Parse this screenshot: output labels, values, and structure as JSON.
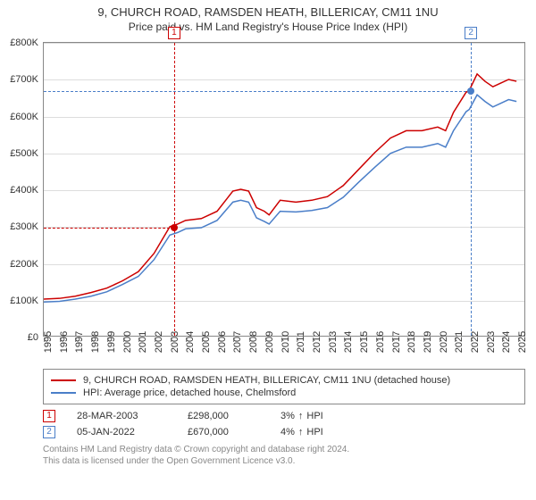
{
  "chart": {
    "title1": "9, CHURCH ROAD, RAMSDEN HEATH, BILLERICAY, CM11 1NU",
    "title2": "Price paid vs. HM Land Registry's House Price Index (HPI)",
    "background_color": "#ffffff",
    "grid_color": "#dddddd",
    "axis_color": "#888888",
    "y": {
      "min": 0,
      "max": 800000,
      "step": 100000,
      "ticks": [
        "£0",
        "£100K",
        "£200K",
        "£300K",
        "£400K",
        "£500K",
        "£600K",
        "£700K",
        "£800K"
      ]
    },
    "x": {
      "min": 1995,
      "max": 2025.5,
      "label_rotation": -90,
      "labels": [
        "1995",
        "1996",
        "1997",
        "1998",
        "1999",
        "2000",
        "2001",
        "2002",
        "2003",
        "2004",
        "2005",
        "2006",
        "2007",
        "2008",
        "2009",
        "2010",
        "2011",
        "2012",
        "2013",
        "2014",
        "2015",
        "2016",
        "2017",
        "2018",
        "2019",
        "2020",
        "2021",
        "2022",
        "2023",
        "2024",
        "2025"
      ]
    },
    "series": [
      {
        "id": "property",
        "label": "9, CHURCH ROAD, RAMSDEN HEATH, BILLERICAY, CM11 1NU (detached house)",
        "color": "#cc0000",
        "line_width": 1.5,
        "points": [
          [
            1995,
            100000
          ],
          [
            1996,
            102000
          ],
          [
            1997,
            108000
          ],
          [
            1998,
            118000
          ],
          [
            1999,
            130000
          ],
          [
            2000,
            150000
          ],
          [
            2001,
            175000
          ],
          [
            2002,
            225000
          ],
          [
            2003,
            298000
          ],
          [
            2003.5,
            305000
          ],
          [
            2004,
            315000
          ],
          [
            2005,
            320000
          ],
          [
            2006,
            340000
          ],
          [
            2007,
            395000
          ],
          [
            2007.5,
            400000
          ],
          [
            2008,
            395000
          ],
          [
            2008.5,
            350000
          ],
          [
            2009,
            340000
          ],
          [
            2009.3,
            330000
          ],
          [
            2010,
            370000
          ],
          [
            2011,
            365000
          ],
          [
            2012,
            370000
          ],
          [
            2013,
            380000
          ],
          [
            2014,
            410000
          ],
          [
            2015,
            455000
          ],
          [
            2016,
            500000
          ],
          [
            2017,
            540000
          ],
          [
            2018,
            560000
          ],
          [
            2019,
            560000
          ],
          [
            2020,
            570000
          ],
          [
            2020.5,
            560000
          ],
          [
            2021,
            610000
          ],
          [
            2021.8,
            665000
          ],
          [
            2022,
            670000
          ],
          [
            2022.5,
            715000
          ],
          [
            2023,
            695000
          ],
          [
            2023.5,
            680000
          ],
          [
            2024,
            690000
          ],
          [
            2024.5,
            700000
          ],
          [
            2025,
            695000
          ]
        ]
      },
      {
        "id": "hpi",
        "label": "HPI: Average price, detached house, Chelmsford",
        "color": "#4a7ec8",
        "line_width": 1.5,
        "points": [
          [
            1995,
            92000
          ],
          [
            1996,
            94000
          ],
          [
            1997,
            100000
          ],
          [
            1998,
            108000
          ],
          [
            1999,
            120000
          ],
          [
            2000,
            140000
          ],
          [
            2001,
            162000
          ],
          [
            2002,
            208000
          ],
          [
            2003,
            275000
          ],
          [
            2003.5,
            282000
          ],
          [
            2004,
            292000
          ],
          [
            2005,
            295000
          ],
          [
            2006,
            315000
          ],
          [
            2007,
            365000
          ],
          [
            2007.5,
            370000
          ],
          [
            2008,
            365000
          ],
          [
            2008.5,
            322000
          ],
          [
            2009,
            312000
          ],
          [
            2009.3,
            305000
          ],
          [
            2010,
            340000
          ],
          [
            2011,
            338000
          ],
          [
            2012,
            342000
          ],
          [
            2013,
            350000
          ],
          [
            2014,
            378000
          ],
          [
            2015,
            420000
          ],
          [
            2016,
            460000
          ],
          [
            2017,
            498000
          ],
          [
            2018,
            515000
          ],
          [
            2019,
            515000
          ],
          [
            2020,
            525000
          ],
          [
            2020.5,
            515000
          ],
          [
            2021,
            560000
          ],
          [
            2021.8,
            612000
          ],
          [
            2022,
            618000
          ],
          [
            2022.5,
            658000
          ],
          [
            2023,
            640000
          ],
          [
            2023.5,
            625000
          ],
          [
            2024,
            635000
          ],
          [
            2024.5,
            645000
          ],
          [
            2025,
            640000
          ]
        ]
      }
    ],
    "markers": [
      {
        "n": "1",
        "color": "#cc0000",
        "x": 2003.24,
        "y": 298000,
        "top_box": true
      },
      {
        "n": "2",
        "color": "#4a7ec8",
        "x": 2022.01,
        "y": 670000,
        "top_box": true
      }
    ]
  },
  "legend": {
    "items": [
      {
        "color": "#cc0000",
        "text": "9, CHURCH ROAD, RAMSDEN HEATH, BILLERICAY, CM11 1NU (detached house)"
      },
      {
        "color": "#4a7ec8",
        "text": "HPI: Average price, detached house, Chelmsford"
      }
    ]
  },
  "events": [
    {
      "n": "1",
      "color": "#cc0000",
      "date": "28-MAR-2003",
      "price": "£298,000",
      "pct": "3%",
      "arrow": "↑",
      "suffix": "HPI"
    },
    {
      "n": "2",
      "color": "#4a7ec8",
      "date": "05-JAN-2022",
      "price": "£670,000",
      "pct": "4%",
      "arrow": "↑",
      "suffix": "HPI"
    }
  ],
  "footer": {
    "line1": "Contains HM Land Registry data © Crown copyright and database right 2024.",
    "line2": "This data is licensed under the Open Government Licence v3.0."
  }
}
